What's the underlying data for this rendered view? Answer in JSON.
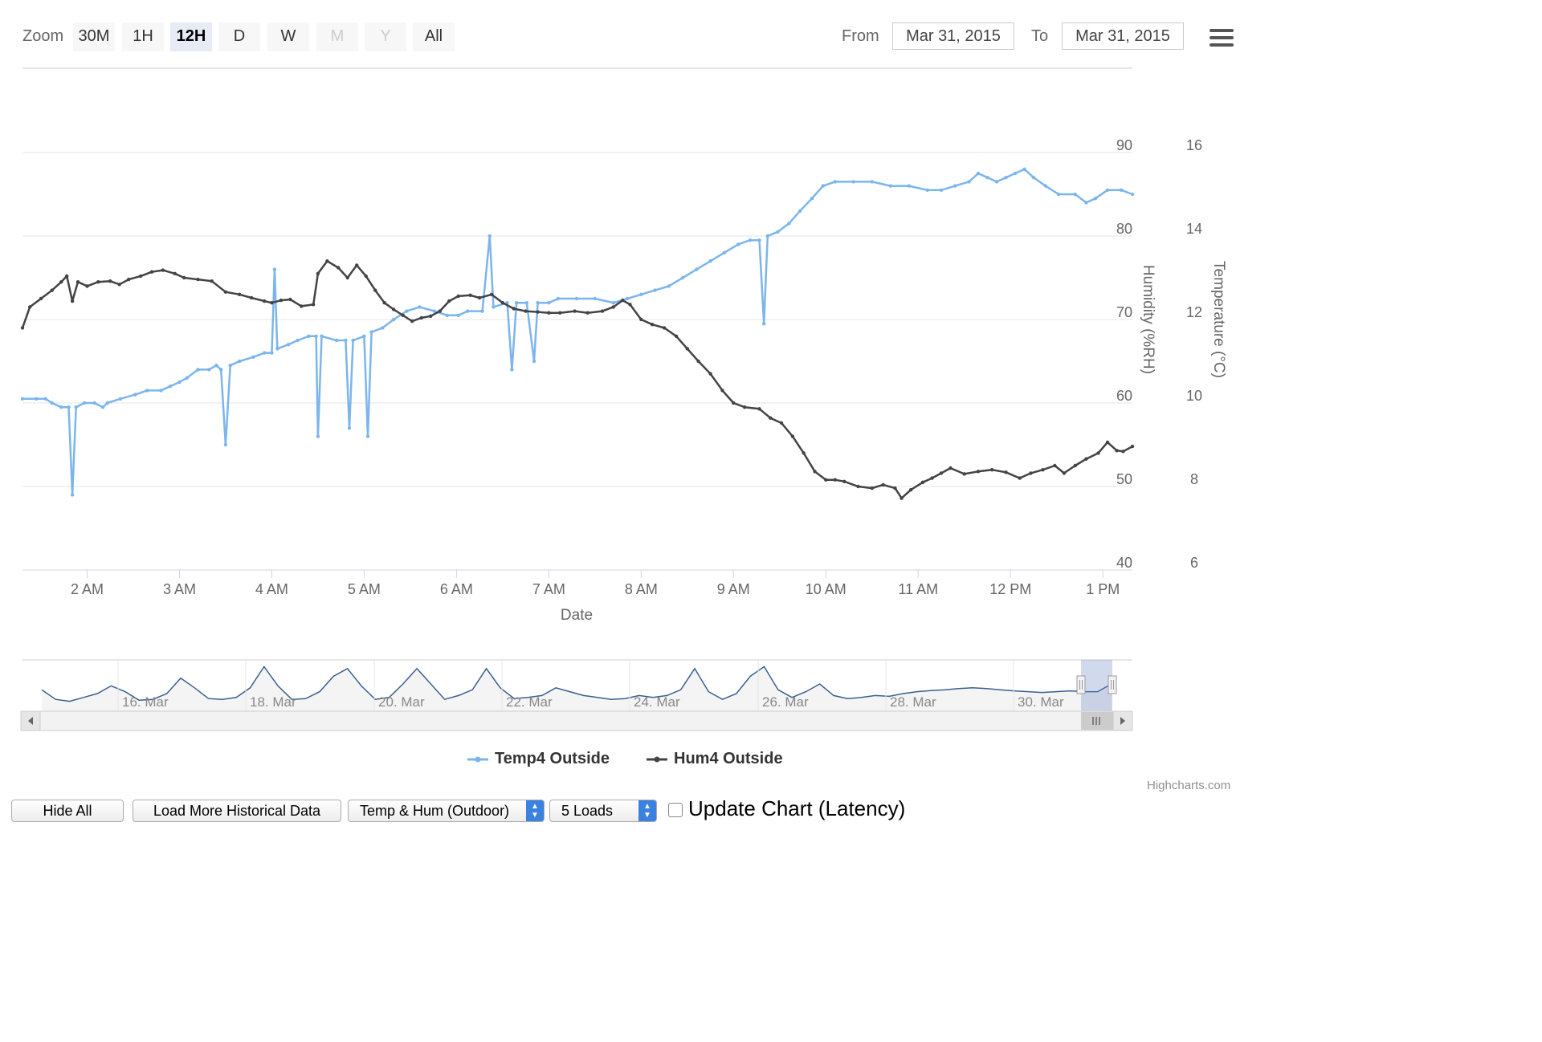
{
  "toolbar": {
    "zoom_label": "Zoom",
    "buttons": [
      {
        "label": "30M",
        "state": "normal"
      },
      {
        "label": "1H",
        "state": "normal"
      },
      {
        "label": "12H",
        "state": "active"
      },
      {
        "label": "D",
        "state": "normal"
      },
      {
        "label": "W",
        "state": "normal"
      },
      {
        "label": "M",
        "state": "disabled"
      },
      {
        "label": "Y",
        "state": "disabled"
      },
      {
        "label": "All",
        "state": "normal"
      }
    ],
    "from_label": "From",
    "from_value": "Mar 31, 2015",
    "to_label": "To",
    "to_value": "Mar 31, 2015"
  },
  "menu_icon": "hamburger-menu-icon",
  "chart_data": {
    "type": "line",
    "title": "",
    "xlabel": "Date",
    "x_unit": "hours (local time, Mar 31, 2015)",
    "xlim": [
      1.3,
      13.32
    ],
    "x_ticks": [
      {
        "x": 2,
        "label": "2 AM"
      },
      {
        "x": 3,
        "label": "3 AM"
      },
      {
        "x": 4,
        "label": "4 AM"
      },
      {
        "x": 5,
        "label": "5 AM"
      },
      {
        "x": 6,
        "label": "6 AM"
      },
      {
        "x": 7,
        "label": "7 AM"
      },
      {
        "x": 8,
        "label": "8 AM"
      },
      {
        "x": 9,
        "label": "9 AM"
      },
      {
        "x": 10,
        "label": "10 AM"
      },
      {
        "x": 11,
        "label": "11 AM"
      },
      {
        "x": 12,
        "label": "12 PM"
      },
      {
        "x": 13,
        "label": "1 PM"
      }
    ],
    "y_axes": [
      {
        "id": "humidity",
        "label": "Humidity (%RH)",
        "ylim": [
          40,
          90
        ],
        "ticks": [
          40,
          50,
          60,
          70,
          80,
          90
        ]
      },
      {
        "id": "temperature",
        "label": "Temperature (°C)",
        "ylim": [
          6,
          16
        ],
        "ticks": [
          6,
          8,
          10,
          12,
          14,
          16
        ]
      }
    ],
    "grid": true,
    "legend_position": "bottom-center",
    "series": [
      {
        "name": "Temp4 Outside",
        "axis": "temperature",
        "color": "#7cb5ec",
        "points": [
          [
            1.3,
            10.1
          ],
          [
            1.45,
            10.1
          ],
          [
            1.55,
            10.1
          ],
          [
            1.62,
            10.0
          ],
          [
            1.72,
            9.9
          ],
          [
            1.8,
            9.9
          ],
          [
            1.84,
            7.8
          ],
          [
            1.88,
            9.9
          ],
          [
            1.97,
            10.0
          ],
          [
            2.08,
            10.0
          ],
          [
            2.17,
            9.9
          ],
          [
            2.22,
            10.0
          ],
          [
            2.36,
            10.1
          ],
          [
            2.52,
            10.2
          ],
          [
            2.65,
            10.3
          ],
          [
            2.8,
            10.3
          ],
          [
            2.9,
            10.4
          ],
          [
            3.0,
            10.5
          ],
          [
            3.08,
            10.6
          ],
          [
            3.2,
            10.8
          ],
          [
            3.32,
            10.8
          ],
          [
            3.4,
            10.9
          ],
          [
            3.45,
            10.8
          ],
          [
            3.5,
            9.0
          ],
          [
            3.55,
            10.9
          ],
          [
            3.65,
            11.0
          ],
          [
            3.8,
            11.1
          ],
          [
            3.92,
            11.2
          ],
          [
            4.0,
            11.2
          ],
          [
            4.03,
            13.2
          ],
          [
            4.06,
            11.3
          ],
          [
            4.18,
            11.4
          ],
          [
            4.28,
            11.5
          ],
          [
            4.4,
            11.6
          ],
          [
            4.48,
            11.6
          ],
          [
            4.5,
            9.2
          ],
          [
            4.54,
            11.6
          ],
          [
            4.7,
            11.5
          ],
          [
            4.8,
            11.5
          ],
          [
            4.84,
            9.4
          ],
          [
            4.88,
            11.5
          ],
          [
            5.0,
            11.6
          ],
          [
            5.04,
            9.2
          ],
          [
            5.08,
            11.7
          ],
          [
            5.2,
            11.8
          ],
          [
            5.32,
            12.0
          ],
          [
            5.46,
            12.2
          ],
          [
            5.6,
            12.3
          ],
          [
            5.76,
            12.2
          ],
          [
            5.9,
            12.1
          ],
          [
            6.02,
            12.1
          ],
          [
            6.12,
            12.2
          ],
          [
            6.28,
            12.2
          ],
          [
            6.36,
            14.0
          ],
          [
            6.4,
            12.3
          ],
          [
            6.55,
            12.4
          ],
          [
            6.6,
            10.8
          ],
          [
            6.65,
            12.4
          ],
          [
            6.76,
            12.4
          ],
          [
            6.84,
            11.0
          ],
          [
            6.88,
            12.4
          ],
          [
            7.0,
            12.4
          ],
          [
            7.1,
            12.5
          ],
          [
            7.3,
            12.5
          ],
          [
            7.5,
            12.5
          ],
          [
            7.7,
            12.4
          ],
          [
            7.85,
            12.5
          ],
          [
            8.0,
            12.6
          ],
          [
            8.15,
            12.7
          ],
          [
            8.3,
            12.8
          ],
          [
            8.45,
            13.0
          ],
          [
            8.6,
            13.2
          ],
          [
            8.75,
            13.4
          ],
          [
            8.9,
            13.6
          ],
          [
            9.05,
            13.8
          ],
          [
            9.18,
            13.9
          ],
          [
            9.28,
            13.9
          ],
          [
            9.33,
            11.9
          ],
          [
            9.37,
            14.0
          ],
          [
            9.48,
            14.1
          ],
          [
            9.6,
            14.3
          ],
          [
            9.72,
            14.6
          ],
          [
            9.85,
            14.9
          ],
          [
            9.97,
            15.2
          ],
          [
            10.1,
            15.3
          ],
          [
            10.3,
            15.3
          ],
          [
            10.5,
            15.3
          ],
          [
            10.7,
            15.2
          ],
          [
            10.9,
            15.2
          ],
          [
            11.1,
            15.1
          ],
          [
            11.25,
            15.1
          ],
          [
            11.4,
            15.2
          ],
          [
            11.55,
            15.3
          ],
          [
            11.65,
            15.5
          ],
          [
            11.75,
            15.4
          ],
          [
            11.85,
            15.3
          ],
          [
            11.95,
            15.4
          ],
          [
            12.05,
            15.5
          ],
          [
            12.15,
            15.6
          ],
          [
            12.25,
            15.4
          ],
          [
            12.38,
            15.2
          ],
          [
            12.52,
            15.0
          ],
          [
            12.7,
            15.0
          ],
          [
            12.82,
            14.8
          ],
          [
            12.92,
            14.9
          ],
          [
            13.05,
            15.1
          ],
          [
            13.2,
            15.1
          ],
          [
            13.32,
            15.0
          ]
        ]
      },
      {
        "name": "Hum4 Outside",
        "axis": "humidity",
        "color": "#434348",
        "points": [
          [
            1.3,
            69
          ],
          [
            1.38,
            71.5
          ],
          [
            1.5,
            72.5
          ],
          [
            1.62,
            73.5
          ],
          [
            1.72,
            74.5
          ],
          [
            1.78,
            75.2
          ],
          [
            1.84,
            72.2
          ],
          [
            1.9,
            74.5
          ],
          [
            2.0,
            74.0
          ],
          [
            2.12,
            74.5
          ],
          [
            2.25,
            74.6
          ],
          [
            2.35,
            74.2
          ],
          [
            2.45,
            74.8
          ],
          [
            2.58,
            75.2
          ],
          [
            2.7,
            75.7
          ],
          [
            2.82,
            75.9
          ],
          [
            2.95,
            75.5
          ],
          [
            3.05,
            75.0
          ],
          [
            3.2,
            74.8
          ],
          [
            3.35,
            74.6
          ],
          [
            3.5,
            73.3
          ],
          [
            3.65,
            73.0
          ],
          [
            3.78,
            72.6
          ],
          [
            3.92,
            72.2
          ],
          [
            4.0,
            72.0
          ],
          [
            4.1,
            72.3
          ],
          [
            4.2,
            72.4
          ],
          [
            4.32,
            71.6
          ],
          [
            4.45,
            71.8
          ],
          [
            4.5,
            75.5
          ],
          [
            4.6,
            77.0
          ],
          [
            4.72,
            76.2
          ],
          [
            4.82,
            75.0
          ],
          [
            4.92,
            76.5
          ],
          [
            5.02,
            75.2
          ],
          [
            5.12,
            73.5
          ],
          [
            5.22,
            72.0
          ],
          [
            5.32,
            71.2
          ],
          [
            5.42,
            70.5
          ],
          [
            5.52,
            69.8
          ],
          [
            5.62,
            70.2
          ],
          [
            5.72,
            70.4
          ],
          [
            5.82,
            71.0
          ],
          [
            5.92,
            72.2
          ],
          [
            6.02,
            72.8
          ],
          [
            6.15,
            72.9
          ],
          [
            6.25,
            72.6
          ],
          [
            6.38,
            73.0
          ],
          [
            6.5,
            72.0
          ],
          [
            6.62,
            71.3
          ],
          [
            6.75,
            71.0
          ],
          [
            6.88,
            70.9
          ],
          [
            7.0,
            70.8
          ],
          [
            7.12,
            70.8
          ],
          [
            7.28,
            71.0
          ],
          [
            7.42,
            70.8
          ],
          [
            7.58,
            71.0
          ],
          [
            7.7,
            71.5
          ],
          [
            7.8,
            72.3
          ],
          [
            7.88,
            71.8
          ],
          [
            8.0,
            70.0
          ],
          [
            8.12,
            69.4
          ],
          [
            8.25,
            69.0
          ],
          [
            8.38,
            68.0
          ],
          [
            8.5,
            66.5
          ],
          [
            8.62,
            65.0
          ],
          [
            8.75,
            63.5
          ],
          [
            8.88,
            61.5
          ],
          [
            9.0,
            60.0
          ],
          [
            9.12,
            59.5
          ],
          [
            9.28,
            59.3
          ],
          [
            9.4,
            58.2
          ],
          [
            9.52,
            57.6
          ],
          [
            9.64,
            56.0
          ],
          [
            9.76,
            54.0
          ],
          [
            9.88,
            51.8
          ],
          [
            10.0,
            50.8
          ],
          [
            10.1,
            50.8
          ],
          [
            10.2,
            50.6
          ],
          [
            10.35,
            50.0
          ],
          [
            10.5,
            49.8
          ],
          [
            10.62,
            50.2
          ],
          [
            10.75,
            49.8
          ],
          [
            10.82,
            48.6
          ],
          [
            10.92,
            49.6
          ],
          [
            11.05,
            50.5
          ],
          [
            11.15,
            51.0
          ],
          [
            11.25,
            51.6
          ],
          [
            11.35,
            52.2
          ],
          [
            11.5,
            51.5
          ],
          [
            11.65,
            51.8
          ],
          [
            11.8,
            52.0
          ],
          [
            11.95,
            51.7
          ],
          [
            12.1,
            51.0
          ],
          [
            12.22,
            51.6
          ],
          [
            12.35,
            52.0
          ],
          [
            12.48,
            52.5
          ],
          [
            12.58,
            51.6
          ],
          [
            12.7,
            52.5
          ],
          [
            12.82,
            53.3
          ],
          [
            12.95,
            54.0
          ],
          [
            13.05,
            55.3
          ],
          [
            13.15,
            54.3
          ],
          [
            13.22,
            54.2
          ],
          [
            13.32,
            54.8
          ]
        ]
      }
    ],
    "navigator": {
      "tick_labels": [
        "16. Mar",
        "18. Mar",
        "20. Mar",
        "22. Mar",
        "24. Mar",
        "26. Mar",
        "28. Mar",
        "30. Mar"
      ],
      "values": [
        0.35,
        0.1,
        0.05,
        0.15,
        0.25,
        0.45,
        0.3,
        0.08,
        0.1,
        0.25,
        0.65,
        0.4,
        0.12,
        0.1,
        0.15,
        0.4,
        0.95,
        0.45,
        0.1,
        0.12,
        0.3,
        0.7,
        0.9,
        0.45,
        0.1,
        0.15,
        0.5,
        0.9,
        0.5,
        0.1,
        0.2,
        0.35,
        0.9,
        0.4,
        0.12,
        0.15,
        0.2,
        0.4,
        0.3,
        0.2,
        0.15,
        0.1,
        0.12,
        0.2,
        0.15,
        0.2,
        0.35,
        0.9,
        0.3,
        0.1,
        0.25,
        0.7,
        0.95,
        0.35,
        0.15,
        0.3,
        0.5,
        0.2,
        0.12,
        0.15,
        0.2,
        0.18,
        0.25,
        0.3,
        0.33,
        0.35,
        0.38,
        0.4,
        0.38,
        0.35,
        0.32,
        0.3,
        0.28,
        0.3,
        0.32,
        0.3,
        0.3,
        0.5
      ]
    }
  },
  "legend": {
    "items": [
      {
        "label": "Temp4 Outside",
        "color": "#7cb5ec"
      },
      {
        "label": "Hum4 Outside",
        "color": "#434348"
      }
    ]
  },
  "credit": "Highcharts.com",
  "controls": {
    "hide_all": "Hide All",
    "load_more": "Load More Historical Data",
    "dataset_select": "Temp & Hum (Outdoor)",
    "loads_select": "5 Loads",
    "update_label": "Update Chart (Latency)"
  }
}
